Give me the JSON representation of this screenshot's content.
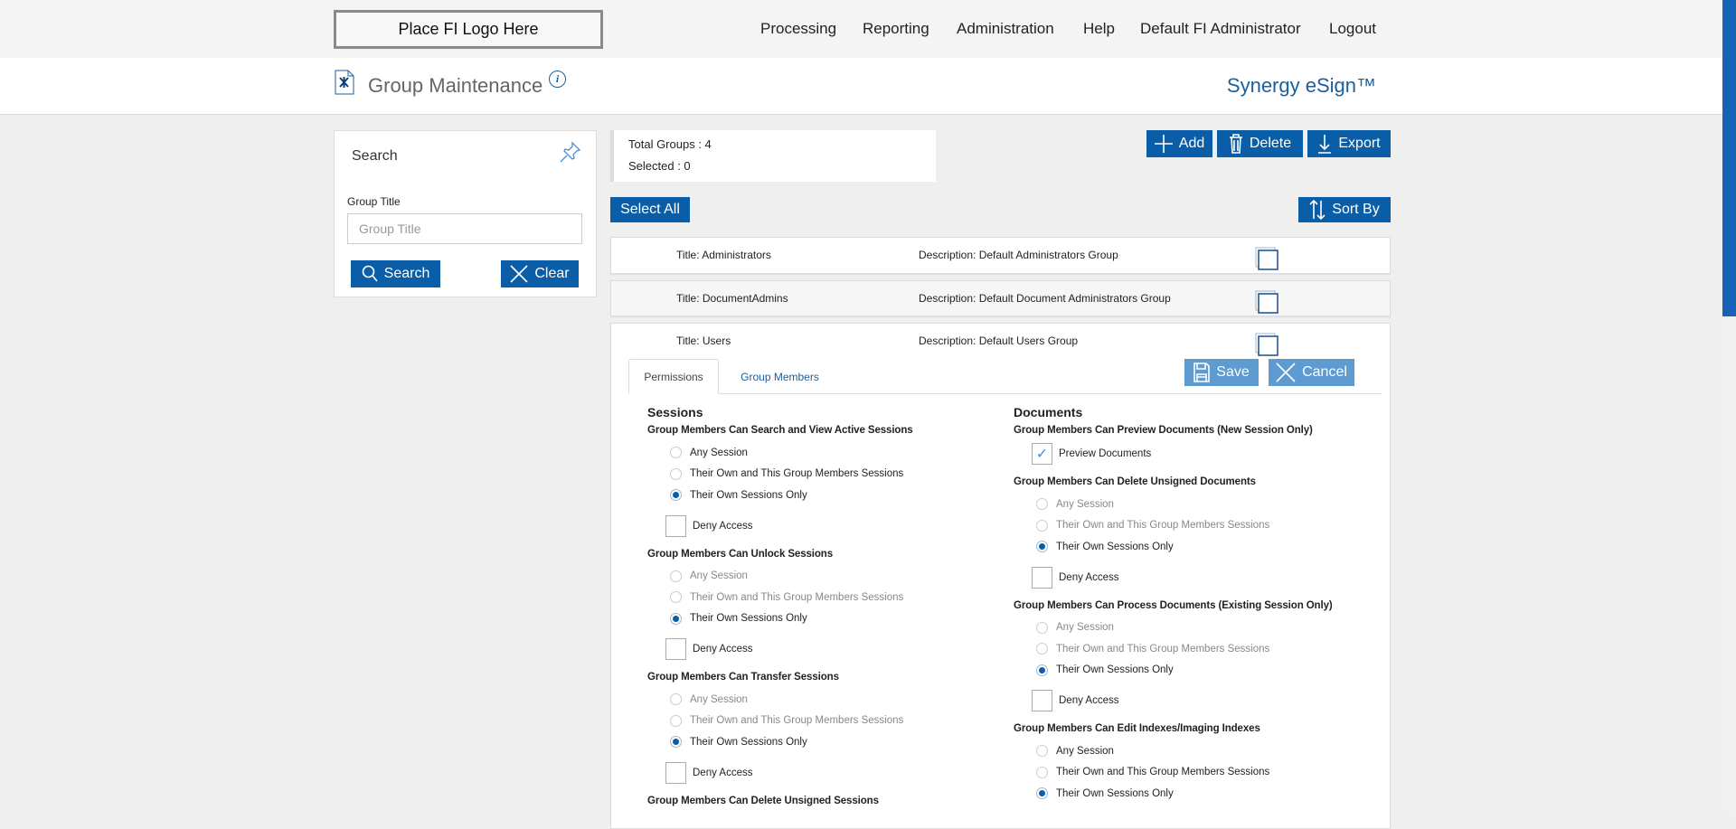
{
  "topbar": {
    "logo": "Place FI Logo Here",
    "nav": [
      "Processing",
      "Reporting",
      "Administration",
      "Help",
      "Default FI Administrator",
      "Logout"
    ]
  },
  "header": {
    "title": "Group Maintenance",
    "brand": "Synergy eSign™",
    "icons": {
      "page": "tools-document-icon",
      "info": "info-icon"
    }
  },
  "search": {
    "title": "Search",
    "field_label": "Group Title",
    "placeholder": "Group Title",
    "value": "",
    "search_label": "Search",
    "clear_label": "Clear"
  },
  "stats": {
    "total": "Total Groups : 4",
    "selected": "Selected : 0"
  },
  "toolbar": {
    "add": "Add",
    "delete": "Delete",
    "export": "Export",
    "select_all": "Select All",
    "sort_by": "Sort By"
  },
  "groups": [
    {
      "title": "Title:  Administrators",
      "description": "Description: Default Administrators Group",
      "checked": false
    },
    {
      "title": "Title:  DocumentAdmins",
      "description": "Description: Default Document Administrators Group",
      "checked": false
    },
    {
      "title": "Title:  Users",
      "description": "Description: Default Users Group",
      "checked": false
    }
  ],
  "editor": {
    "tabs": [
      "Permissions",
      "Group Members"
    ],
    "active_tab": "Permissions",
    "save": "Save",
    "cancel": "Cancel"
  },
  "permissions": {
    "left": {
      "heading": "Sessions",
      "groups": [
        {
          "label": "Group Members Can Search and View Active Sessions",
          "options": [
            "Any Session",
            "Their Own and This Group Members Sessions",
            "Their Own Sessions Only"
          ],
          "selected": 2,
          "disabled": false,
          "deny": "Deny Access",
          "deny_checked": false
        },
        {
          "label": "Group Members Can Unlock Sessions",
          "options": [
            "Any Session",
            "Their Own and This Group Members Sessions",
            "Their Own Sessions Only"
          ],
          "selected": 2,
          "disabled": true,
          "deny": "Deny Access",
          "deny_checked": false
        },
        {
          "label": "Group Members Can Transfer Sessions",
          "options": [
            "Any Session",
            "Their Own and This Group Members Sessions",
            "Their Own Sessions Only"
          ],
          "selected": 2,
          "disabled": true,
          "deny": "Deny Access",
          "deny_checked": false
        },
        {
          "label": "Group Members Can Delete Unsigned Sessions",
          "options": [],
          "selected": null,
          "disabled": false
        }
      ]
    },
    "right": {
      "heading": "Documents",
      "groups": [
        {
          "label": "Group Members Can Preview Documents (New Session Only)",
          "checkbox": "Preview Documents",
          "checked": true
        },
        {
          "label": "Group Members Can Delete Unsigned Documents",
          "options": [
            "Any Session",
            "Their Own and This Group Members Sessions",
            "Their Own Sessions Only"
          ],
          "selected": 2,
          "disabled": true,
          "deny": "Deny Access",
          "deny_checked": false
        },
        {
          "label": "Group Members Can Process Documents (Existing Session Only)",
          "options": [
            "Any Session",
            "Their Own and This Group Members Sessions",
            "Their Own Sessions Only"
          ],
          "selected": 2,
          "disabled": true,
          "deny": "Deny Access",
          "deny_checked": false
        },
        {
          "label": "Group Members Can Edit Indexes/Imaging Indexes",
          "options": [
            "Any Session",
            "Their Own and This Group Members Sessions",
            "Their Own Sessions Only"
          ],
          "selected": 2,
          "disabled": false
        }
      ]
    }
  },
  "colors": {
    "primary": "#0a5ea8",
    "disabled_button": "#5e9bd0",
    "brand": "#1a5f9e"
  }
}
